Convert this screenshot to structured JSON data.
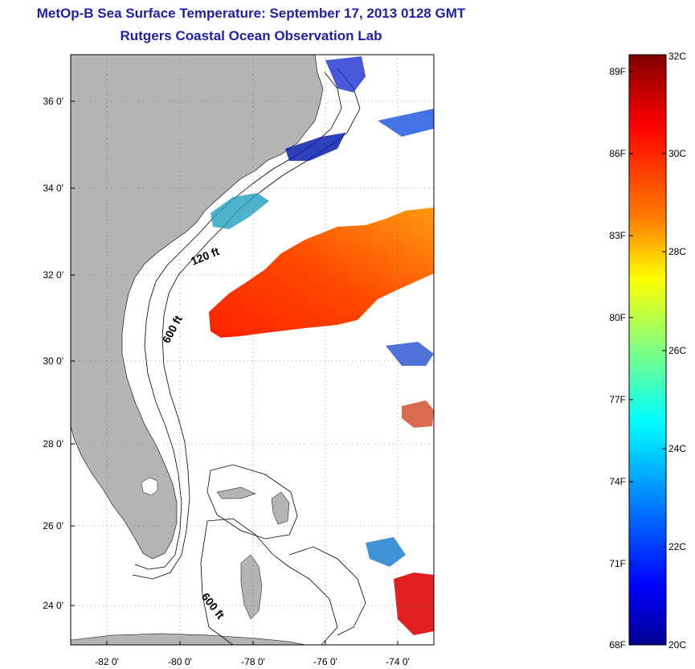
{
  "title": {
    "line1": "MetOp-B Sea Surface Temperature:  September 17, 2013 0128 GMT",
    "line2": "Rutgers Coastal Ocean Observation Lab"
  },
  "map": {
    "lon_ticks": [
      "-82 0'",
      "-80 0'",
      "-78 0'",
      "-76 0'",
      "-74 0'"
    ],
    "lat_ticks": [
      "36 0'",
      "34 0'",
      "32 0'",
      "30 0'",
      "28 0'",
      "26 0'",
      "24 0'"
    ],
    "contour_labels": [
      "120 ft",
      "600 ft",
      "600 ft"
    ],
    "land_color": "#b4b4b4"
  },
  "colorbar": {
    "fahrenheit_labels": [
      "89F",
      "86F",
      "83F",
      "80F",
      "77F",
      "74F",
      "71F",
      "68F"
    ],
    "celsius_labels": [
      "32C",
      "30C",
      "28C",
      "26C",
      "24C",
      "22C",
      "20C"
    ],
    "colors": [
      "#7f0000",
      "#ff0000",
      "#ff8000",
      "#ffff00",
      "#80ff80",
      "#00ffff",
      "#0080ff",
      "#0000ff",
      "#00008f"
    ]
  }
}
